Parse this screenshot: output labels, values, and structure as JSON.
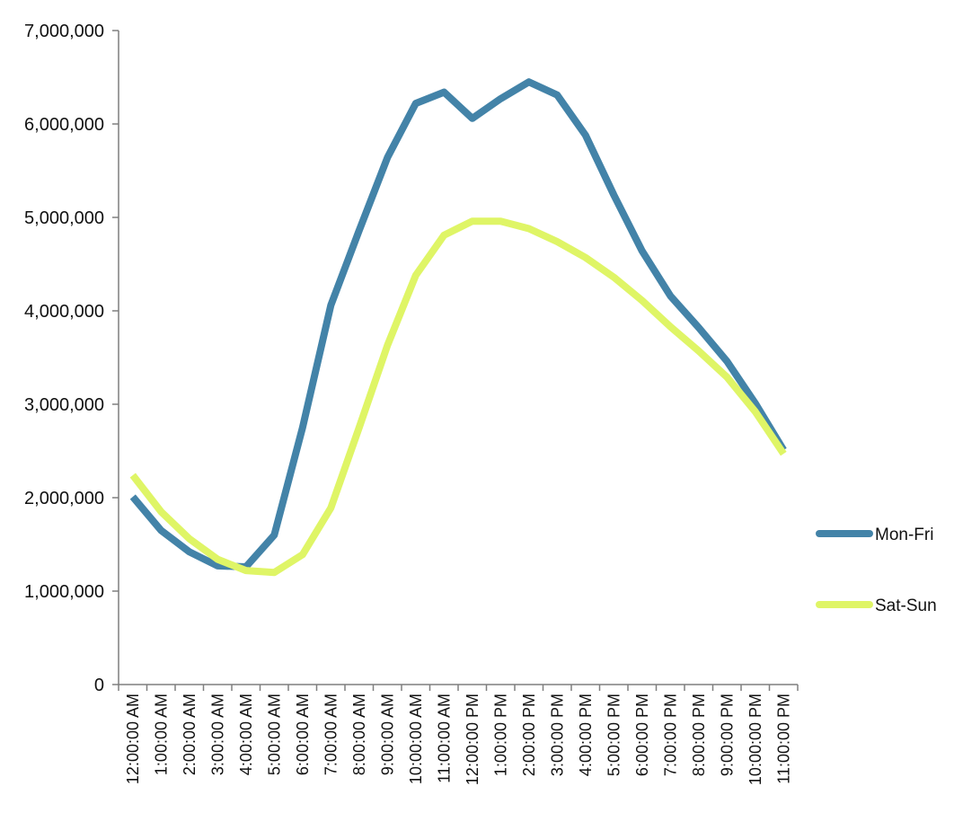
{
  "chart_data": {
    "type": "line",
    "title": "",
    "xlabel": "",
    "ylabel": "",
    "categories": [
      "12:00:00 AM",
      "1:00:00 AM",
      "2:00:00 AM",
      "3:00:00 AM",
      "4:00:00 AM",
      "5:00:00 AM",
      "6:00:00 AM",
      "7:00:00 AM",
      "8:00:00 AM",
      "9:00:00 AM",
      "10:00:00 AM",
      "11:00:00 AM",
      "12:00:00 PM",
      "1:00:00 PM",
      "2:00:00 PM",
      "3:00:00 PM",
      "4:00:00 PM",
      "5:00:00 PM",
      "6:00:00 PM",
      "7:00:00 PM",
      "8:00:00 PM",
      "9:00:00 PM",
      "10:00:00 PM",
      "11:00:00 PM"
    ],
    "ylim": [
      0,
      7000000
    ],
    "yticks": [
      0,
      1000000,
      2000000,
      3000000,
      4000000,
      5000000,
      6000000,
      7000000
    ],
    "ytick_labels": [
      "0",
      "1,000,000",
      "2,000,000",
      "3,000,000",
      "4,000,000",
      "5,000,000",
      "6,000,000",
      "7,000,000"
    ],
    "grid": false,
    "legend_position": "right",
    "series": [
      {
        "name": "Mon-Fri",
        "color": "#4383A8",
        "values": [
          2010000,
          1650000,
          1420000,
          1270000,
          1260000,
          1600000,
          2750000,
          4060000,
          4860000,
          5640000,
          6220000,
          6340000,
          6060000,
          6270000,
          6450000,
          6310000,
          5880000,
          5240000,
          4640000,
          4160000,
          3820000,
          3460000,
          3010000,
          2510000
        ]
      },
      {
        "name": "Sat-Sun",
        "color": "#DFF566",
        "values": [
          2240000,
          1850000,
          1560000,
          1340000,
          1220000,
          1200000,
          1390000,
          1890000,
          2750000,
          3630000,
          4380000,
          4810000,
          4960000,
          4960000,
          4880000,
          4740000,
          4570000,
          4360000,
          4110000,
          3830000,
          3570000,
          3290000,
          2920000,
          2470000
        ]
      }
    ]
  }
}
